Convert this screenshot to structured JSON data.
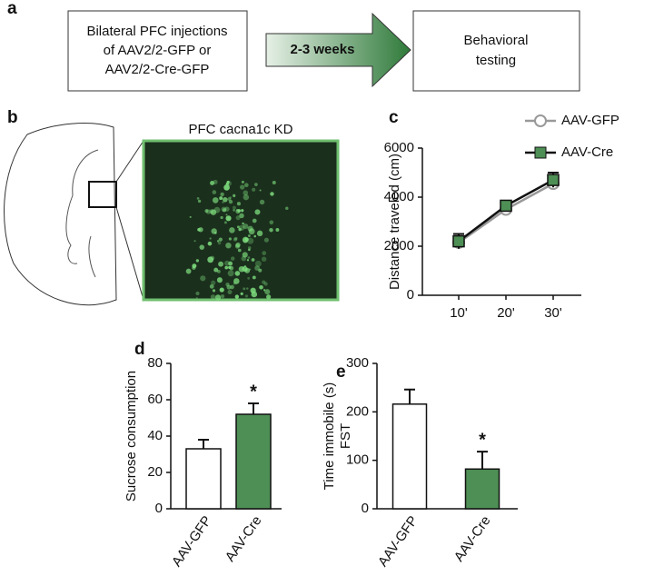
{
  "panel_labels": [
    "a",
    "b",
    "c",
    "d",
    "e"
  ],
  "diagram": {
    "box1": [
      "Bilateral PFC injections",
      "of AAV2/2-GFP or",
      "AAV2/2-Cre-GFP"
    ],
    "arrow": "2-3 weeks",
    "box2": [
      "Behavioral",
      "testing"
    ]
  },
  "image": {
    "title": "PFC cacna1c KD"
  },
  "chart_data": [
    {
      "type": "line",
      "ylabel": [
        "Distance traveled (cm)"
      ],
      "categories": [
        "10'",
        "20'",
        "30'"
      ],
      "series": [
        {
          "name": "AAV-GFP",
          "color": "#999999",
          "marker_fill": "#ffffff",
          "values": [
            2150,
            3500,
            4550
          ],
          "errors": [
            200,
            150,
            200
          ]
        },
        {
          "name": "AAV-Cre",
          "color": "#111111",
          "marker_fill": "#4e8f55",
          "values": [
            2200,
            3650,
            4700
          ],
          "errors": [
            300,
            150,
            300
          ]
        }
      ],
      "ylim": [
        0,
        6000
      ],
      "yticks": [
        0,
        2000,
        4000,
        6000
      ],
      "legend": "top-right"
    },
    {
      "type": "bar",
      "ylabel": [
        "Sucrose consumption"
      ],
      "categories": [
        "AAV-GFP",
        "AAV-Cre"
      ],
      "values": [
        33,
        52
      ],
      "errors": [
        5,
        6
      ],
      "colors": [
        "#ffffff",
        "#4e8f55"
      ],
      "significance": [
        null,
        "*"
      ],
      "ylim": [
        0,
        80
      ],
      "yticks": [
        0,
        20,
        40,
        60,
        80
      ]
    },
    {
      "type": "bar",
      "ylabel": [
        "Time immobile (s)",
        "FST"
      ],
      "categories": [
        "AAV-GFP",
        "AAV-Cre"
      ],
      "values": [
        216,
        82
      ],
      "errors": [
        30,
        36
      ],
      "colors": [
        "#ffffff",
        "#4e8f55"
      ],
      "significance": [
        null,
        "*"
      ],
      "ylim": [
        0,
        300
      ],
      "yticks": [
        0,
        100,
        200,
        300
      ]
    }
  ]
}
